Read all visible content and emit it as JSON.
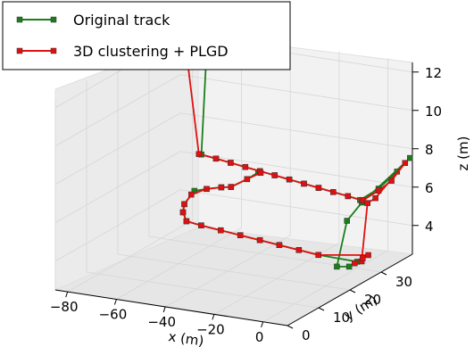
{
  "chart_data": {
    "type": "line",
    "projection": "3d",
    "title": "",
    "xlabel": "x (m)",
    "ylabel": "y (m)",
    "zlabel": "z (m)",
    "xlim": [
      -85,
      10
    ],
    "ylim": [
      0,
      40
    ],
    "zlim": [
      2.5,
      12.5
    ],
    "x_ticks": [
      -80,
      -60,
      -40,
      -20,
      0
    ],
    "y_ticks": [
      0,
      10,
      20,
      30
    ],
    "z_ticks": [
      4,
      6,
      8,
      10,
      12
    ],
    "x_tick_labels": [
      "−80",
      "−60",
      "−40",
      "−20",
      "0"
    ],
    "y_tick_labels": [
      "0",
      "10",
      "20",
      "30"
    ],
    "z_tick_labels": [
      "4",
      "6",
      "8",
      "10",
      "12"
    ],
    "grid": true,
    "legend_position": "top-left",
    "series": [
      {
        "name": "Original track",
        "color": "#1a7f1a",
        "marker": "square",
        "points": [
          [
            -75,
            35,
            11.8
          ],
          [
            -73,
            35,
            11.7
          ],
          [
            -70,
            35,
            11.5
          ],
          [
            -67,
            35,
            11.4
          ],
          [
            -68,
            35,
            11.6
          ],
          [
            -70,
            35,
            6.6
          ],
          [
            -64,
            35,
            6.5
          ],
          [
            -58,
            35,
            6.4
          ],
          [
            -52,
            35,
            6.3
          ],
          [
            -46,
            35,
            6.2
          ],
          [
            -40,
            35,
            6.1
          ],
          [
            -34,
            35,
            6.0
          ],
          [
            -28,
            35,
            5.9
          ],
          [
            -22,
            35,
            5.8
          ],
          [
            -16,
            35,
            5.7
          ],
          [
            -10,
            35,
            5.6
          ],
          [
            -5,
            35,
            5.5
          ],
          [
            0,
            37,
            6.0
          ],
          [
            5,
            39,
            6.8
          ],
          [
            9,
            40,
            7.5
          ],
          [
            -3,
            34,
            5.5
          ],
          [
            -4,
            30,
            4.9
          ],
          [
            -3,
            26,
            2.9
          ],
          [
            2,
            26,
            3.0
          ],
          [
            4,
            27,
            3.2
          ],
          [
            -8,
            24,
            3.6
          ],
          [
            -16,
            24,
            3.7
          ],
          [
            -24,
            24,
            3.8
          ],
          [
            -32,
            24,
            3.9
          ],
          [
            -40,
            24,
            4.0
          ],
          [
            -48,
            24,
            4.1
          ],
          [
            -56,
            24,
            4.2
          ],
          [
            -62,
            24,
            4.3
          ],
          [
            -66,
            26,
            4.5
          ],
          [
            -68,
            28,
            4.7
          ],
          [
            -69,
            32,
            5.0
          ],
          [
            -64,
            32,
            5.2
          ],
          [
            -58,
            32,
            5.4
          ],
          [
            -54,
            32,
            5.5
          ],
          [
            -50,
            34,
            5.8
          ],
          [
            -48,
            36,
            6.0
          ]
        ]
      },
      {
        "name": "3D clustering + PLGD",
        "color": "#e01010",
        "marker": "square",
        "points": [
          [
            -79,
            35,
            11.8
          ],
          [
            -76,
            35,
            11.7
          ],
          [
            -71,
            35,
            6.6
          ],
          [
            -64,
            35,
            6.5
          ],
          [
            -58,
            35,
            6.4
          ],
          [
            -52,
            35,
            6.3
          ],
          [
            -46,
            35,
            6.2
          ],
          [
            -40,
            35,
            6.1
          ],
          [
            -34,
            35,
            6.0
          ],
          [
            -28,
            35,
            5.9
          ],
          [
            -22,
            35,
            5.8
          ],
          [
            -16,
            35,
            5.7
          ],
          [
            -10,
            35,
            5.6
          ],
          [
            -4,
            35,
            5.5
          ],
          [
            0,
            37,
            5.9
          ],
          [
            4,
            38,
            6.4
          ],
          [
            7,
            40,
            7.2
          ],
          [
            0,
            36,
            5.6
          ],
          [
            -2,
            35,
            5.4
          ],
          [
            2,
            30,
            2.9
          ],
          [
            5,
            28,
            3.3
          ],
          [
            3,
            27,
            3.1
          ],
          [
            6,
            29,
            3.4
          ],
          [
            -8,
            24,
            3.6
          ],
          [
            -16,
            24,
            3.7
          ],
          [
            -24,
            24,
            3.8
          ],
          [
            -32,
            24,
            3.9
          ],
          [
            -40,
            24,
            4.0
          ],
          [
            -48,
            24,
            4.1
          ],
          [
            -56,
            24,
            4.2
          ],
          [
            -62,
            24,
            4.3
          ],
          [
            -66,
            26,
            4.5
          ],
          [
            -68,
            28,
            4.7
          ],
          [
            -69,
            31,
            4.9
          ],
          [
            -64,
            32,
            5.2
          ],
          [
            -58,
            32,
            5.4
          ],
          [
            -54,
            32,
            5.5
          ],
          [
            -50,
            34,
            5.8
          ],
          [
            -47,
            36,
            6.0
          ]
        ]
      }
    ]
  }
}
